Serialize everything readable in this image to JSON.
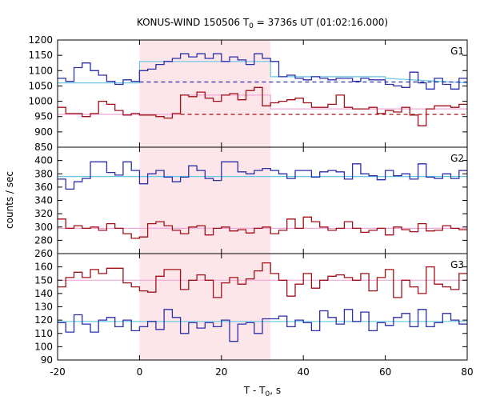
{
  "chart_data": {
    "type": "line",
    "title": "KONUS-WIND 150506 T",
    "title_sub": "0",
    "title_rest": " = 3736s UT (01:02:16.000)",
    "xlabel": "T - T",
    "xlabel_sub": "0",
    "xlabel_rest": ", s",
    "ylabel": "counts / sec",
    "xlim": [
      -20,
      80
    ],
    "x_ticks": [
      "-20",
      "0",
      "20",
      "40",
      "60",
      "80"
    ],
    "highlight_interval": [
      0,
      32
    ],
    "colors": {
      "blue": "#2b2fa8",
      "red": "#a01018",
      "cyan": "#66c8e6",
      "pink": "#f0a8d8",
      "highlight": "#fde6ea"
    },
    "bin_edges": [
      -20,
      -18,
      -16,
      -14,
      -12,
      -10,
      -8,
      -6,
      -4,
      -2,
      0,
      2,
      4,
      6,
      8,
      10,
      12,
      14,
      16,
      18,
      20,
      22,
      24,
      26,
      28,
      30,
      32,
      34,
      36,
      38,
      40,
      42,
      44,
      46,
      48,
      50,
      52,
      54,
      56,
      58,
      60,
      62,
      64,
      66,
      68,
      70,
      72,
      74,
      76,
      78,
      80
    ],
    "panels": [
      {
        "label": "G1",
        "ylim": [
          850,
          1200
        ],
        "y_ticks": [
          "850",
          "900",
          "950",
          "1000",
          "1050",
          "1100",
          "1150",
          "1200"
        ],
        "series": [
          {
            "color": "blue",
            "values": [
              1075,
              1065,
              1110,
              1125,
              1100,
              1085,
              1065,
              1055,
              1070,
              1065,
              1100,
              1105,
              1120,
              1130,
              1140,
              1155,
              1145,
              1155,
              1140,
              1155,
              1130,
              1145,
              1135,
              1120,
              1155,
              1140,
              1130,
              1080,
              1085,
              1075,
              1070,
              1080,
              1075,
              1070,
              1075,
              1075,
              1065,
              1075,
              1070,
              1070,
              1055,
              1050,
              1045,
              1095,
              1060,
              1040,
              1075,
              1055,
              1040,
              1075
            ]
          },
          {
            "color": "red",
            "values": [
              980,
              960,
              960,
              950,
              960,
              1000,
              990,
              970,
              955,
              960,
              955,
              955,
              950,
              945,
              960,
              1020,
              1015,
              1030,
              1010,
              1000,
              1020,
              1025,
              1005,
              1035,
              1045,
              985,
              995,
              1000,
              1005,
              1010,
              995,
              980,
              980,
              990,
              1020,
              980,
              975,
              975,
              980,
              960,
              970,
              965,
              980,
              955,
              920,
              975,
              985,
              985,
              980,
              990
            ]
          }
        ],
        "fits": [
          {
            "color": "cyan",
            "dashed": false,
            "points": [
              [
                -20,
                1060
              ],
              [
                0,
                1060
              ],
              [
                0,
                1130
              ],
              [
                32,
                1130
              ],
              [
                32,
                1080
              ],
              [
                60,
                1080
              ],
              [
                60,
                1075
              ],
              [
                80,
                1060
              ]
            ]
          },
          {
            "color": "blue",
            "dashed": true,
            "points": [
              [
                0,
                1063
              ],
              [
                80,
                1063
              ]
            ]
          },
          {
            "color": "pink",
            "dashed": false,
            "points": [
              [
                -20,
                957
              ],
              [
                10,
                957
              ],
              [
                10,
                1020
              ],
              [
                32,
                1020
              ],
              [
                32,
                975
              ],
              [
                80,
                975
              ]
            ]
          },
          {
            "color": "red",
            "dashed": true,
            "points": [
              [
                10,
                957
              ],
              [
                80,
                957
              ]
            ]
          }
        ]
      },
      {
        "label": "G2",
        "ylim": [
          260,
          420
        ],
        "y_ticks": [
          "260",
          "280",
          "300",
          "320",
          "340",
          "360",
          "380",
          "400"
        ],
        "series": [
          {
            "color": "blue",
            "values": [
              372,
              357,
              368,
              373,
              398,
              398,
              382,
              378,
              398,
              385,
              365,
              380,
              385,
              375,
              368,
              375,
              392,
              385,
              373,
              370,
              398,
              398,
              383,
              380,
              385,
              388,
              385,
              380,
              373,
              385,
              385,
              375,
              383,
              385,
              383,
              372,
              395,
              380,
              377,
              371,
              385,
              377,
              380,
              372,
              395,
              375,
              373,
              380,
              373,
              385
            ]
          },
          {
            "color": "red",
            "values": [
              312,
              298,
              302,
              298,
              300,
              295,
              305,
              298,
              290,
              283,
              285,
              305,
              308,
              302,
              295,
              290,
              300,
              302,
              288,
              298,
              300,
              294,
              296,
              291,
              298,
              300,
              290,
              295,
              312,
              298,
              315,
              308,
              300,
              295,
              298,
              308,
              298,
              292,
              295,
              298,
              288,
              300,
              296,
              293,
              305,
              294,
              295,
              302,
              298,
              296
            ]
          }
        ],
        "fits": [
          {
            "color": "cyan",
            "dashed": false,
            "points": [
              [
                -20,
                376
              ],
              [
                80,
                376
              ]
            ]
          },
          {
            "color": "pink",
            "dashed": false,
            "points": [
              [
                -20,
                298
              ],
              [
                80,
                298
              ]
            ]
          }
        ]
      },
      {
        "label": "G3",
        "ylim": [
          90,
          170
        ],
        "y_ticks": [
          "90",
          "100",
          "110",
          "120",
          "130",
          "140",
          "150",
          "160"
        ],
        "series": [
          {
            "color": "red",
            "values": [
              145,
              152,
              156,
              152,
              158,
              155,
              159,
              159,
              148,
              145,
              142,
              141,
              153,
              158,
              158,
              143,
              150,
              154,
              150,
              137,
              148,
              152,
              147,
              151,
              157,
              163,
              155,
              150,
              138,
              147,
              155,
              144,
              150,
              153,
              154,
              152,
              150,
              155,
              142,
              152,
              158,
              137,
              150,
              145,
              140,
              160,
              147,
              145,
              143,
              155
            ]
          },
          {
            "color": "blue",
            "values": [
              118,
              111,
              124,
              117,
              111,
              120,
              122,
              115,
              120,
              112,
              115,
              119,
              113,
              128,
              122,
              110,
              118,
              114,
              118,
              115,
              120,
              104,
              117,
              118,
              110,
              121,
              121,
              123,
              115,
              120,
              118,
              112,
              127,
              122,
              117,
              128,
              119,
              126,
              112,
              118,
              116,
              122,
              125,
              115,
              128,
              115,
              118,
              125,
              120,
              117
            ]
          }
        ],
        "fits": [
          {
            "color": "pink",
            "dashed": false,
            "points": [
              [
                -20,
                150
              ],
              [
                80,
                150
              ]
            ]
          },
          {
            "color": "cyan",
            "dashed": false,
            "points": [
              [
                -20,
                119
              ],
              [
                80,
                119
              ]
            ]
          }
        ]
      }
    ]
  }
}
